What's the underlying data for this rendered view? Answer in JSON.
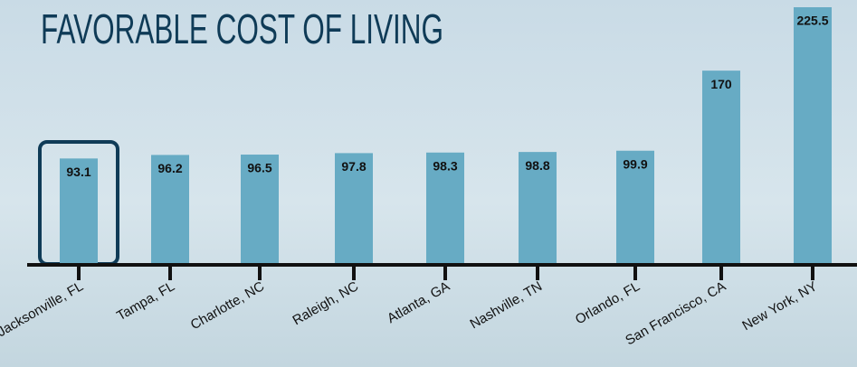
{
  "chart_data": {
    "type": "bar",
    "title": "FAVORABLE COST OF LIVING",
    "categories": [
      "Jacksonville, FL",
      "Tampa, FL",
      "Charlotte, NC",
      "Raleigh, NC",
      "Atlanta, GA",
      "Nashville, TN",
      "Orlando, FL",
      "San Francisco, CA",
      "New York, NY"
    ],
    "values": [
      93.1,
      96.2,
      96.5,
      97.8,
      98.3,
      98.8,
      99.9,
      170,
      225.5
    ],
    "color": "#67abc4"
  }
}
